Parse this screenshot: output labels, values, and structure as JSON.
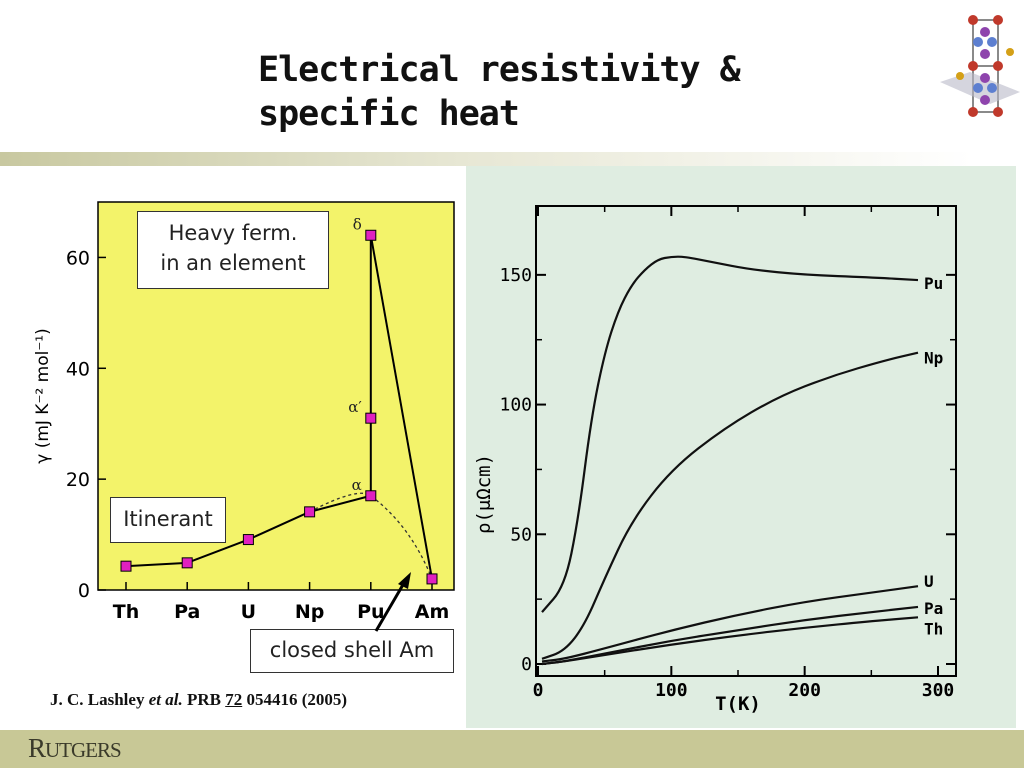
{
  "slide": {
    "title_line1": "Electrical resistivity &",
    "title_line2": "specific heat",
    "rutgers_R": "R",
    "rutgers_rest": "UTGERS"
  },
  "labels": {
    "heavy_line1": "Heavy ferm.",
    "heavy_line2": "in an element",
    "itinerant": "Itinerant",
    "closed_shell": "closed shell Am"
  },
  "citation": {
    "author": "J. C. Lashley ",
    "etal": "et al.",
    "journal": " PRB ",
    "volume": "72",
    "rest": " 054416 (2005)"
  },
  "colors": {
    "left_bg": "#f3f36a",
    "right_bg": "#dfede1",
    "marker": "#e020c0"
  },
  "chart_data": [
    {
      "type": "line",
      "ylabel": "γ (mJ K⁻² mol⁻¹)",
      "categories": [
        "Th",
        "Pa",
        "U",
        "Np",
        "Pu",
        "Am"
      ],
      "ylim": [
        0,
        70
      ],
      "yticks": [
        "0",
        "20",
        "40",
        "60"
      ],
      "grid": false,
      "points": [
        {
          "x": "Th",
          "y": 4.3,
          "label": ""
        },
        {
          "x": "Pa",
          "y": 4.9,
          "label": ""
        },
        {
          "x": "U",
          "y": 9.1,
          "label": ""
        },
        {
          "x": "Np",
          "y": 14.1,
          "label": ""
        },
        {
          "x": "Pu",
          "y": 17.0,
          "label": "α"
        },
        {
          "x": "Pu",
          "y": 31.0,
          "label": "α′"
        },
        {
          "x": "Pu",
          "y": 64.0,
          "label": "δ"
        },
        {
          "x": "Am",
          "y": 2.0,
          "label": ""
        }
      ],
      "dotted_path": [
        [
          "Np",
          14.1
        ],
        [
          "Pu-mid",
          17.6
        ],
        [
          "Pu",
          17.0
        ],
        [
          "Am",
          2.0
        ]
      ]
    },
    {
      "type": "line",
      "xlabel": "T(K)",
      "ylabel": "ρ(μΩcm)",
      "xlim": [
        0,
        300
      ],
      "ylim": [
        0,
        175
      ],
      "xticks": [
        "0",
        "100",
        "200",
        "300"
      ],
      "yticks": [
        "0",
        "50",
        "100",
        "150"
      ],
      "grid": false,
      "series": [
        {
          "name": "Pu",
          "x": [
            3,
            20,
            30,
            40,
            50,
            60,
            70,
            80,
            90,
            100,
            110,
            130,
            160,
            200,
            250,
            285
          ],
          "y": [
            20,
            30,
            55,
            95,
            120,
            136,
            146,
            152,
            156,
            157,
            157,
            155,
            152,
            150,
            149,
            148
          ]
        },
        {
          "name": "Np",
          "x": [
            3,
            20,
            35,
            50,
            70,
            100,
            140,
            180,
            220,
            260,
            285
          ],
          "y": [
            2,
            5,
            15,
            33,
            55,
            75,
            91,
            103,
            111,
            117,
            120
          ]
        },
        {
          "name": "U",
          "x": [
            3,
            20,
            50,
            100,
            150,
            200,
            250,
            285
          ],
          "y": [
            1,
            2,
            6,
            13,
            19,
            24,
            27.5,
            30
          ]
        },
        {
          "name": "Pa",
          "x": [
            3,
            20,
            50,
            100,
            150,
            200,
            250,
            285
          ],
          "y": [
            0,
            1,
            4,
            9,
            13,
            17,
            20,
            22
          ]
        },
        {
          "name": "Th",
          "x": [
            3,
            20,
            50,
            100,
            150,
            200,
            250,
            285
          ],
          "y": [
            0,
            1,
            3.5,
            7.5,
            11,
            14,
            16.5,
            18
          ]
        }
      ]
    }
  ]
}
